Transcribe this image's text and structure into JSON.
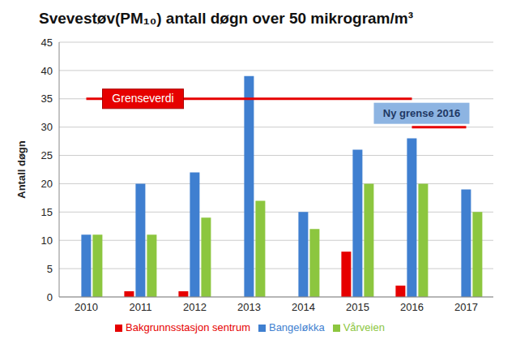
{
  "chart_data": {
    "type": "bar",
    "title": "Svevestøv(PM₁₀) antall døgn over 50 mikrogram/m³",
    "y_label": "Antall døgn",
    "categories": [
      "2010",
      "2011",
      "2012",
      "2013",
      "2014",
      "2015",
      "2016",
      "2017"
    ],
    "series": [
      {
        "name": "Bakgrunnsstasjon sentrum",
        "color": "#e60000",
        "values": [
          0,
          1,
          1,
          0,
          0,
          8,
          2,
          0
        ]
      },
      {
        "name": "Bangeløkka",
        "color": "#3f7fd0",
        "values": [
          11,
          20,
          22,
          39,
          15,
          26,
          28,
          19
        ]
      },
      {
        "name": "Vårveien",
        "color": "#8cc63f",
        "values": [
          11,
          11,
          14,
          17,
          12,
          20,
          20,
          15
        ]
      }
    ],
    "annotations": [
      {
        "text": "Grenseverdi",
        "y": 35,
        "color": "#e60000"
      },
      {
        "text": "Ny grense 2016",
        "y": 30,
        "color": "#e60000"
      }
    ],
    "ylim": [
      0,
      45
    ],
    "yticks": [
      0,
      5,
      10,
      15,
      20,
      25,
      30,
      35,
      40,
      45
    ],
    "grid": true,
    "legend": "bottom"
  }
}
